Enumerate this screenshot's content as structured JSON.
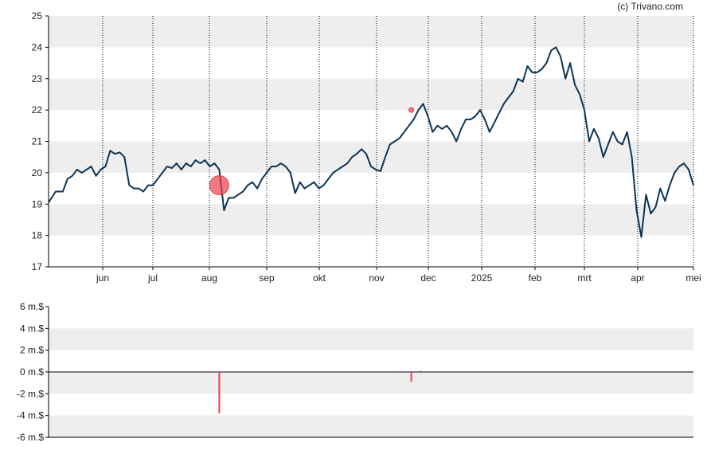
{
  "copyright": "(c) Trivano.com",
  "chart_data": [
    {
      "type": "line",
      "title": "",
      "xlabel": "",
      "ylabel": "",
      "ylim": [
        17,
        25
      ],
      "yticks": [
        17,
        18,
        19,
        20,
        21,
        22,
        23,
        24,
        25
      ],
      "grid": true,
      "months": [
        "jun",
        "jul",
        "aug",
        "sep",
        "okt",
        "nov",
        "dec",
        "2025",
        "feb",
        "mrt",
        "apr",
        "mei"
      ],
      "colors": {
        "line": "#0d3455",
        "band": "#eeeeee",
        "marker": "#e8414b",
        "grid": "#000000"
      },
      "series": [
        {
          "values": [
            [
              0,
              19.05
            ],
            [
              1.5,
              19.4
            ],
            [
              3,
              19.4
            ],
            [
              4,
              19.8
            ],
            [
              5,
              19.9
            ],
            [
              6,
              20.1
            ],
            [
              7,
              20.0
            ],
            [
              8,
              20.1
            ],
            [
              9,
              20.2
            ],
            [
              10,
              19.9
            ],
            [
              11,
              20.1
            ],
            [
              12,
              20.2
            ],
            [
              13,
              20.7
            ],
            [
              14,
              20.6
            ],
            [
              15,
              20.65
            ],
            [
              16,
              20.5
            ],
            [
              17,
              19.6
            ],
            [
              18,
              19.5
            ],
            [
              19,
              19.5
            ],
            [
              20,
              19.4
            ],
            [
              21,
              19.6
            ],
            [
              22,
              19.6
            ],
            [
              23,
              19.8
            ],
            [
              24,
              20.0
            ],
            [
              25,
              20.2
            ],
            [
              26,
              20.15
            ],
            [
              27,
              20.3
            ],
            [
              28,
              20.1
            ],
            [
              29,
              20.3
            ],
            [
              30,
              20.2
            ],
            [
              31,
              20.4
            ],
            [
              32,
              20.3
            ],
            [
              33,
              20.4
            ],
            [
              34,
              20.2
            ],
            [
              35,
              20.3
            ],
            [
              36,
              20.1
            ],
            [
              37,
              18.8
            ],
            [
              38,
              19.2
            ],
            [
              39,
              19.2
            ],
            [
              40,
              19.3
            ],
            [
              41,
              19.4
            ],
            [
              42,
              19.6
            ],
            [
              43,
              19.7
            ],
            [
              44,
              19.5
            ],
            [
              45,
              19.8
            ],
            [
              46,
              20.0
            ],
            [
              47,
              20.2
            ],
            [
              48,
              20.2
            ],
            [
              49,
              20.3
            ],
            [
              50,
              20.2
            ],
            [
              51,
              20.0
            ],
            [
              52,
              19.35
            ],
            [
              53,
              19.7
            ],
            [
              54,
              19.5
            ],
            [
              55,
              19.6
            ],
            [
              56,
              19.7
            ],
            [
              57,
              19.5
            ],
            [
              58,
              19.6
            ],
            [
              59,
              19.8
            ],
            [
              60,
              20.0
            ],
            [
              61,
              20.1
            ],
            [
              62,
              20.2
            ],
            [
              63,
              20.3
            ],
            [
              64,
              20.5
            ],
            [
              65,
              20.6
            ],
            [
              66,
              20.75
            ],
            [
              67,
              20.6
            ],
            [
              68,
              20.2
            ],
            [
              69,
              20.1
            ],
            [
              70,
              20.05
            ],
            [
              71,
              20.5
            ],
            [
              72,
              20.9
            ],
            [
              73,
              21.0
            ],
            [
              74,
              21.1
            ],
            [
              75,
              21.3
            ],
            [
              76,
              21.5
            ],
            [
              77,
              21.7
            ],
            [
              78,
              22.0
            ],
            [
              79,
              22.2
            ],
            [
              80,
              21.8
            ],
            [
              81,
              21.3
            ],
            [
              82,
              21.5
            ],
            [
              83,
              21.4
            ],
            [
              84,
              21.5
            ],
            [
              85,
              21.3
            ],
            [
              86,
              21.0
            ],
            [
              87,
              21.4
            ],
            [
              88,
              21.7
            ],
            [
              89,
              21.7
            ],
            [
              90,
              21.8
            ],
            [
              91,
              22.0
            ],
            [
              92,
              21.7
            ],
            [
              93,
              21.3
            ],
            [
              94,
              21.6
            ],
            [
              95,
              21.9
            ],
            [
              96,
              22.2
            ],
            [
              97,
              22.4
            ],
            [
              98,
              22.6
            ],
            [
              99,
              23.0
            ],
            [
              100,
              22.9
            ],
            [
              101,
              23.4
            ],
            [
              102,
              23.2
            ],
            [
              103,
              23.2
            ],
            [
              104,
              23.3
            ],
            [
              105,
              23.5
            ],
            [
              106,
              23.9
            ],
            [
              107,
              24.0
            ],
            [
              108,
              23.7
            ],
            [
              109,
              23.0
            ],
            [
              110,
              23.5
            ],
            [
              111,
              22.8
            ],
            [
              112,
              22.5
            ],
            [
              113,
              22.0
            ],
            [
              114,
              21.0
            ],
            [
              115,
              21.4
            ],
            [
              116,
              21.1
            ],
            [
              117,
              20.5
            ],
            [
              118,
              20.9
            ],
            [
              119,
              21.3
            ],
            [
              120,
              21.0
            ],
            [
              121,
              20.9
            ],
            [
              122,
              21.3
            ],
            [
              123,
              20.5
            ],
            [
              124,
              18.8
            ],
            [
              125,
              17.95
            ],
            [
              126,
              19.3
            ],
            [
              127,
              18.7
            ],
            [
              128,
              18.9
            ],
            [
              129,
              19.5
            ],
            [
              130,
              19.1
            ],
            [
              131,
              19.6
            ],
            [
              132,
              20.0
            ],
            [
              133,
              20.2
            ],
            [
              134,
              20.3
            ],
            [
              135,
              20.1
            ],
            [
              136,
              19.6
            ]
          ]
        }
      ],
      "annotations": [
        {
          "kind": "circle",
          "x": 36,
          "y": 19.6,
          "size": "large",
          "color": "#e8414b"
        },
        {
          "kind": "circle",
          "x": 76.5,
          "y": 22.0,
          "size": "small",
          "color": "#e8414b"
        }
      ]
    },
    {
      "type": "bar",
      "title": "",
      "xlabel": "",
      "ylabel": "",
      "ylim": [
        -6,
        6
      ],
      "yticks": [
        "6 m.$",
        "4 m.$",
        "2 m.$",
        "0 m.$",
        "-2 m.$",
        "-4 m.$",
        "-6 m.$"
      ],
      "yvalues": [
        6,
        4,
        2,
        0,
        -2,
        -4,
        -6
      ],
      "colors": {
        "negative": "#e8414b",
        "positive": "#2e8b57",
        "band": "#eeeeee"
      },
      "bars": [
        {
          "x": 36,
          "value": -3.8
        },
        {
          "x": 76.5,
          "value": -0.9
        },
        {
          "x": 78.5,
          "value": 0.1
        }
      ]
    }
  ]
}
